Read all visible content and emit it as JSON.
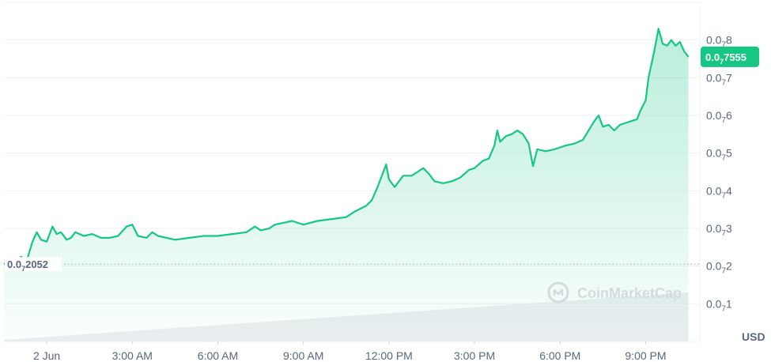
{
  "chart_data": {
    "type": "area",
    "currency": "USD",
    "price_prefix": "0.0",
    "subscript_zeros": "7",
    "y_ticks": [
      {
        "value": 0.1,
        "digits": "1"
      },
      {
        "value": 0.2,
        "digits": "2"
      },
      {
        "value": 0.3,
        "digits": "3"
      },
      {
        "value": 0.4,
        "digits": "4"
      },
      {
        "value": 0.5,
        "digits": "5"
      },
      {
        "value": 0.6,
        "digits": "6"
      },
      {
        "value": 0.7,
        "digits": "7"
      },
      {
        "value": 0.8,
        "digits": "8"
      }
    ],
    "ylim": [
      0.0,
      0.9
    ],
    "x_ticks": [
      {
        "value": 0.0,
        "label": "2 Jun"
      },
      {
        "value": 3.0,
        "label": "3:00 AM"
      },
      {
        "value": 6.0,
        "label": "6:00 AM"
      },
      {
        "value": 9.0,
        "label": "9:00 AM"
      },
      {
        "value": 12.0,
        "label": "12:00 PM"
      },
      {
        "value": 15.0,
        "label": "3:00 PM"
      },
      {
        "value": 18.0,
        "label": "6:00 PM"
      },
      {
        "value": 21.0,
        "label": "9:00 PM"
      }
    ],
    "xlim": [
      -1.5,
      22.9
    ],
    "open_price": {
      "value": 0.2052,
      "digits": "2052"
    },
    "last_price": {
      "value": 0.7555,
      "digits": "7555"
    },
    "colors": {
      "line": "#16c784",
      "badge": "#16c784",
      "grid": "#eff2f5",
      "text": "#58667e"
    },
    "grid": true,
    "watermark": "CoinMarketCap",
    "series": [
      {
        "values": [
          [
            -1.5,
            0.205
          ],
          [
            -1.25,
            0.22
          ],
          [
            -1.1,
            0.215
          ],
          [
            -0.9,
            0.225
          ],
          [
            -0.7,
            0.215
          ],
          [
            -0.5,
            0.265
          ],
          [
            -0.35,
            0.29
          ],
          [
            -0.2,
            0.27
          ],
          [
            0.0,
            0.265
          ],
          [
            0.2,
            0.305
          ],
          [
            0.35,
            0.285
          ],
          [
            0.5,
            0.29
          ],
          [
            0.7,
            0.27
          ],
          [
            0.85,
            0.275
          ],
          [
            1.0,
            0.29
          ],
          [
            1.3,
            0.28
          ],
          [
            1.6,
            0.285
          ],
          [
            1.9,
            0.275
          ],
          [
            2.2,
            0.275
          ],
          [
            2.5,
            0.28
          ],
          [
            2.8,
            0.305
          ],
          [
            3.0,
            0.31
          ],
          [
            3.2,
            0.28
          ],
          [
            3.5,
            0.275
          ],
          [
            3.7,
            0.29
          ],
          [
            3.9,
            0.28
          ],
          [
            4.2,
            0.275
          ],
          [
            4.5,
            0.27
          ],
          [
            5.0,
            0.275
          ],
          [
            5.5,
            0.28
          ],
          [
            6.0,
            0.28
          ],
          [
            6.5,
            0.285
          ],
          [
            7.0,
            0.29
          ],
          [
            7.3,
            0.305
          ],
          [
            7.5,
            0.295
          ],
          [
            7.8,
            0.3
          ],
          [
            8.0,
            0.31
          ],
          [
            8.3,
            0.315
          ],
          [
            8.6,
            0.32
          ],
          [
            9.0,
            0.31
          ],
          [
            9.5,
            0.32
          ],
          [
            10.0,
            0.325
          ],
          [
            10.5,
            0.33
          ],
          [
            10.8,
            0.345
          ],
          [
            11.2,
            0.36
          ],
          [
            11.4,
            0.375
          ],
          [
            11.6,
            0.41
          ],
          [
            11.8,
            0.45
          ],
          [
            11.9,
            0.47
          ],
          [
            12.0,
            0.43
          ],
          [
            12.2,
            0.41
          ],
          [
            12.5,
            0.44
          ],
          [
            12.8,
            0.44
          ],
          [
            13.0,
            0.45
          ],
          [
            13.2,
            0.46
          ],
          [
            13.4,
            0.445
          ],
          [
            13.6,
            0.425
          ],
          [
            13.9,
            0.42
          ],
          [
            14.2,
            0.425
          ],
          [
            14.5,
            0.435
          ],
          [
            14.8,
            0.455
          ],
          [
            15.0,
            0.46
          ],
          [
            15.3,
            0.48
          ],
          [
            15.5,
            0.485
          ],
          [
            15.7,
            0.52
          ],
          [
            15.8,
            0.56
          ],
          [
            15.9,
            0.53
          ],
          [
            16.1,
            0.545
          ],
          [
            16.3,
            0.55
          ],
          [
            16.5,
            0.56
          ],
          [
            16.7,
            0.55
          ],
          [
            16.9,
            0.525
          ],
          [
            17.05,
            0.465
          ],
          [
            17.2,
            0.51
          ],
          [
            17.5,
            0.505
          ],
          [
            17.8,
            0.51
          ],
          [
            18.0,
            0.515
          ],
          [
            18.2,
            0.52
          ],
          [
            18.5,
            0.525
          ],
          [
            18.8,
            0.535
          ],
          [
            19.0,
            0.56
          ],
          [
            19.2,
            0.585
          ],
          [
            19.35,
            0.6
          ],
          [
            19.5,
            0.57
          ],
          [
            19.7,
            0.575
          ],
          [
            19.9,
            0.56
          ],
          [
            20.1,
            0.575
          ],
          [
            20.3,
            0.58
          ],
          [
            20.5,
            0.585
          ],
          [
            20.7,
            0.59
          ],
          [
            20.8,
            0.61
          ],
          [
            21.0,
            0.64
          ],
          [
            21.1,
            0.7
          ],
          [
            21.3,
            0.77
          ],
          [
            21.45,
            0.83
          ],
          [
            21.6,
            0.79
          ],
          [
            21.75,
            0.785
          ],
          [
            21.9,
            0.8
          ],
          [
            22.05,
            0.785
          ],
          [
            22.2,
            0.795
          ],
          [
            22.35,
            0.77
          ],
          [
            22.5,
            0.7555
          ]
        ]
      }
    ],
    "volume": {
      "start": {
        "x": -1.5,
        "level": 0.0
      },
      "end": {
        "x": 22.5,
        "level": 1.0
      }
    }
  }
}
